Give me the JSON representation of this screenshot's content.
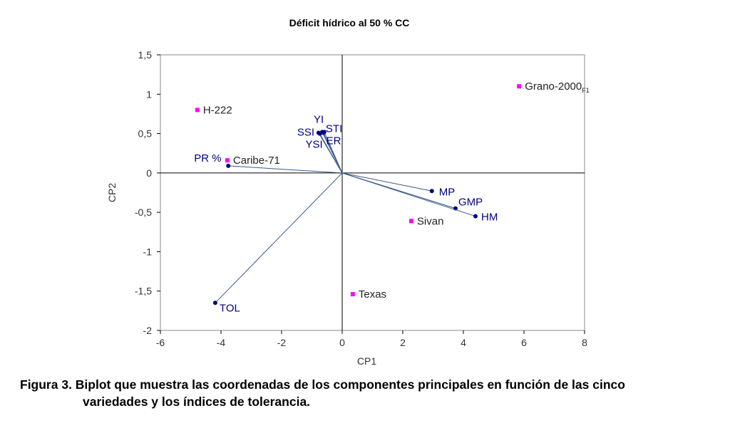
{
  "chart_data": {
    "type": "scatter",
    "title": "Déficit hídrico al 50 % CC",
    "xlabel": "CP1",
    "ylabel": "CP2",
    "xlim": [
      -6,
      8
    ],
    "ylim": [
      -2,
      1.5
    ],
    "xticks": [
      -6,
      -4,
      -2,
      0,
      2,
      4,
      6,
      8
    ],
    "yticks": [
      1.5,
      1,
      0.5,
      0,
      -0.5,
      -1,
      -1.5,
      -2
    ],
    "ytick_labels": [
      "1,5",
      "1",
      "0,5",
      "0",
      "-0,5",
      "-1",
      "-1,5",
      "-2"
    ],
    "varieties": [
      {
        "name": "H-222",
        "x": -4.78,
        "y": 0.8
      },
      {
        "name": "Caribe-71",
        "x": -3.79,
        "y": 0.16
      },
      {
        "name": "Grano-2000",
        "sub": "F1",
        "x": 5.84,
        "y": 1.1
      },
      {
        "name": "Sivan",
        "x": 2.28,
        "y": -0.61
      },
      {
        "name": "Texas",
        "x": 0.35,
        "y": -1.54
      }
    ],
    "indices": [
      {
        "name": "PR %",
        "x": -3.76,
        "y": 0.09
      },
      {
        "name": "TOL",
        "x": -4.19,
        "y": -1.65
      },
      {
        "name": "MP",
        "x": 2.96,
        "y": -0.23
      },
      {
        "name": "GMP",
        "x": 3.74,
        "y": -0.45
      },
      {
        "name": "HM",
        "x": 4.4,
        "y": -0.55
      },
      {
        "name": "SSI",
        "x": -0.78,
        "y": 0.51
      },
      {
        "name": "YI",
        "x": -0.66,
        "y": 0.52
      },
      {
        "name": "STI",
        "x": -0.59,
        "y": 0.52
      },
      {
        "name": "YSI",
        "x": -0.74,
        "y": 0.5
      },
      {
        "name": "ER",
        "x": -0.62,
        "y": 0.51
      }
    ],
    "colors": {
      "variety": "#ff00ff",
      "index": "#000080",
      "vector": "#3a5a8a"
    }
  },
  "caption": {
    "line1": "Figura 3. Biplot que muestra las coordenadas de los componentes principales en función de las cinco",
    "line2": "variedades y los índices de tolerancia."
  }
}
